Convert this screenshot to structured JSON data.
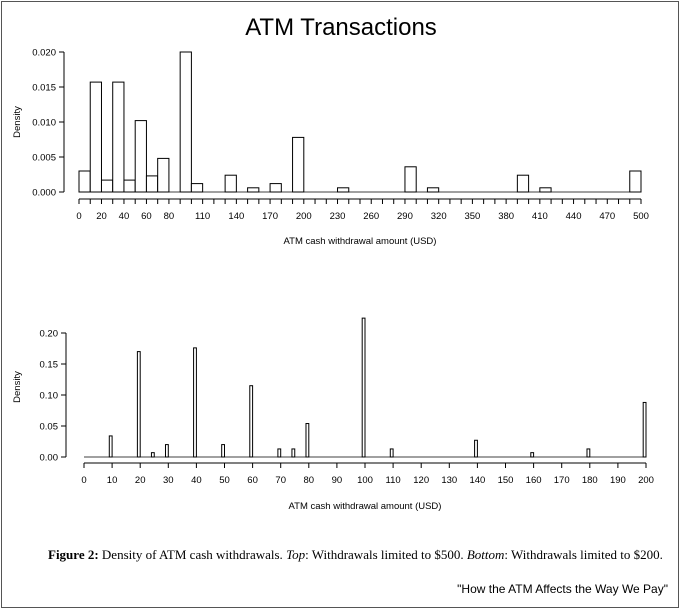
{
  "title": "ATM Transactions",
  "caption": {
    "label": "Figure 2:",
    "text_1": " Density of ATM cash withdrawals. ",
    "top_word": "Top",
    "text_2": ": Withdrawals limited to $500. ",
    "bottom_word": "Bottom",
    "text_3": ": Withdrawals limited to $200."
  },
  "source_note": "\"How the ATM Affects the Way We Pay\"",
  "chart_data": [
    {
      "type": "bar",
      "xlabel": "ATM cash withdrawal amount (USD)",
      "ylabel": "Density",
      "xlim": [
        0,
        500
      ],
      "ylim": [
        0,
        0.02
      ],
      "x_ticks": [
        0,
        10,
        20,
        30,
        40,
        50,
        60,
        70,
        80,
        90,
        100,
        110,
        120,
        130,
        140,
        150,
        160,
        170,
        180,
        190,
        200,
        210,
        220,
        230,
        240,
        250,
        260,
        270,
        280,
        290,
        300,
        310,
        320,
        330,
        340,
        350,
        360,
        370,
        380,
        390,
        400,
        410,
        420,
        430,
        440,
        450,
        460,
        470,
        480,
        490,
        500
      ],
      "x_tick_labels": [
        "0",
        "20",
        "40",
        "60",
        "80",
        "110",
        "140",
        "170",
        "200",
        "230",
        "260",
        "290",
        "320",
        "350",
        "380",
        "410",
        "440",
        "470",
        "500"
      ],
      "x_tick_label_values": [
        0,
        20,
        40,
        60,
        80,
        110,
        140,
        170,
        200,
        230,
        260,
        290,
        320,
        350,
        380,
        410,
        440,
        470,
        500
      ],
      "y_ticks": [
        0,
        0.005,
        0.01,
        0.015,
        0.02
      ],
      "y_tick_labels": [
        "0.000",
        "0.005",
        "0.010",
        "0.015",
        "0.020"
      ],
      "bin_width": 10,
      "bins": [
        {
          "x0": 0,
          "x1": 10,
          "y": 0.003
        },
        {
          "x0": 10,
          "x1": 20,
          "y": 0.0157
        },
        {
          "x0": 20,
          "x1": 30,
          "y": 0.0017
        },
        {
          "x0": 30,
          "x1": 40,
          "y": 0.0157
        },
        {
          "x0": 40,
          "x1": 50,
          "y": 0.0017
        },
        {
          "x0": 50,
          "x1": 60,
          "y": 0.0102
        },
        {
          "x0": 60,
          "x1": 70,
          "y": 0.0023
        },
        {
          "x0": 70,
          "x1": 80,
          "y": 0.0048
        },
        {
          "x0": 90,
          "x1": 100,
          "y": 0.02
        },
        {
          "x0": 100,
          "x1": 110,
          "y": 0.0012
        },
        {
          "x0": 130,
          "x1": 140,
          "y": 0.0024
        },
        {
          "x0": 150,
          "x1": 160,
          "y": 0.0006
        },
        {
          "x0": 170,
          "x1": 180,
          "y": 0.0012
        },
        {
          "x0": 190,
          "x1": 200,
          "y": 0.0078
        },
        {
          "x0": 230,
          "x1": 240,
          "y": 0.0006
        },
        {
          "x0": 290,
          "x1": 300,
          "y": 0.0036
        },
        {
          "x0": 310,
          "x1": 320,
          "y": 0.0006
        },
        {
          "x0": 390,
          "x1": 400,
          "y": 0.0024
        },
        {
          "x0": 410,
          "x1": 420,
          "y": 0.0006
        },
        {
          "x0": 490,
          "x1": 500,
          "y": 0.003
        }
      ]
    },
    {
      "type": "bar",
      "xlabel": "ATM cash withdrawal amount (USD)",
      "ylabel": "Density",
      "xlim": [
        0,
        200
      ],
      "ylim": [
        0,
        0.22
      ],
      "x_ticks": [
        0,
        10,
        20,
        30,
        40,
        50,
        60,
        70,
        80,
        90,
        100,
        110,
        120,
        130,
        140,
        150,
        160,
        170,
        180,
        190,
        200
      ],
      "x_tick_labels": [
        "0",
        "10",
        "20",
        "30",
        "40",
        "50",
        "60",
        "70",
        "80",
        "90",
        "100",
        "110",
        "120",
        "130",
        "140",
        "150",
        "160",
        "170",
        "180",
        "190",
        "200"
      ],
      "y_ticks": [
        0,
        0.05,
        0.1,
        0.15,
        0.2
      ],
      "y_tick_labels": [
        "0.00",
        "0.05",
        "0.10",
        "0.15",
        "0.20"
      ],
      "bin_width": 1,
      "bins": [
        {
          "x0": 9,
          "x1": 10,
          "y": 0.034
        },
        {
          "x0": 19,
          "x1": 20,
          "y": 0.17
        },
        {
          "x0": 24,
          "x1": 25,
          "y": 0.007
        },
        {
          "x0": 29,
          "x1": 30,
          "y": 0.02
        },
        {
          "x0": 39,
          "x1": 40,
          "y": 0.176
        },
        {
          "x0": 49,
          "x1": 50,
          "y": 0.02
        },
        {
          "x0": 59,
          "x1": 60,
          "y": 0.115
        },
        {
          "x0": 69,
          "x1": 70,
          "y": 0.013
        },
        {
          "x0": 74,
          "x1": 75,
          "y": 0.013
        },
        {
          "x0": 79,
          "x1": 80,
          "y": 0.054
        },
        {
          "x0": 99,
          "x1": 100,
          "y": 0.224
        },
        {
          "x0": 109,
          "x1": 110,
          "y": 0.013
        },
        {
          "x0": 139,
          "x1": 140,
          "y": 0.027
        },
        {
          "x0": 159,
          "x1": 160,
          "y": 0.007
        },
        {
          "x0": 179,
          "x1": 180,
          "y": 0.013
        },
        {
          "x0": 199,
          "x1": 200,
          "y": 0.088
        }
      ]
    }
  ]
}
